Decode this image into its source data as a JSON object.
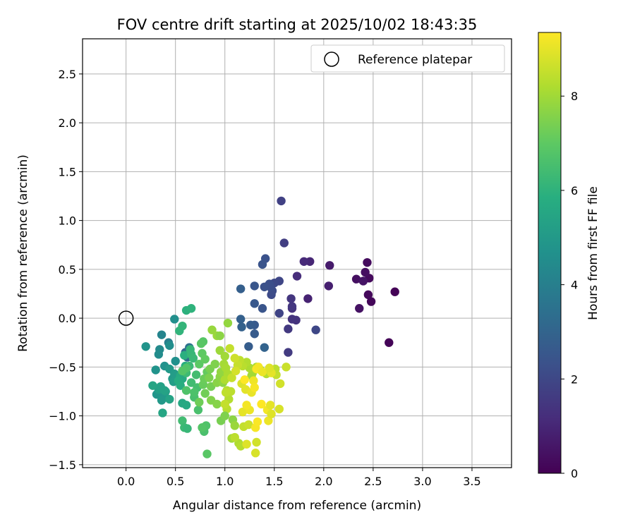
{
  "chart_data": {
    "type": "scatter",
    "title": "FOV centre drift starting at 2025/10/02 18:43:35",
    "xlabel": "Angular distance from reference (arcmin)",
    "ylabel": "Rotation from reference (arcmin)",
    "xlim": [
      -0.44,
      3.9
    ],
    "ylim": [
      -1.53,
      2.86
    ],
    "x_ticks": [
      0.0,
      0.5,
      1.0,
      1.5,
      2.0,
      2.5,
      3.0,
      3.5
    ],
    "x_tick_labels": [
      "0.0",
      "0.5",
      "1.0",
      "1.5",
      "2.0",
      "2.5",
      "3.0",
      "3.5"
    ],
    "y_ticks": [
      -1.5,
      -1.0,
      -0.5,
      0.0,
      0.5,
      1.0,
      1.5,
      2.0,
      2.5
    ],
    "y_tick_labels": [
      "−1.5",
      "−1.0",
      "−0.5",
      "0.0",
      "0.5",
      "1.0",
      "1.5",
      "2.0",
      "2.5"
    ],
    "grid": true,
    "legend": {
      "placement": "top-right",
      "entries": [
        "Reference platepar"
      ]
    },
    "reference_point": {
      "label": "Reference platepar",
      "x": 0.0,
      "y": 0.0
    },
    "colorbar": {
      "label": "Hours from first FF file",
      "colormap": "viridis",
      "range": [
        0,
        9.35
      ],
      "ticks": [
        0,
        2,
        4,
        6,
        8
      ],
      "tick_labels": [
        "0",
        "2",
        "4",
        "6",
        "8"
      ]
    },
    "points": [
      [
        2.72,
        0.27,
        0.05
      ],
      [
        2.66,
        -0.25,
        0.1
      ],
      [
        2.48,
        0.17,
        0.15
      ],
      [
        2.45,
        0.24,
        0.2
      ],
      [
        2.46,
        0.41,
        0.25
      ],
      [
        2.44,
        0.57,
        0.3
      ],
      [
        2.42,
        0.47,
        0.35
      ],
      [
        2.33,
        0.4,
        0.4
      ],
      [
        2.36,
        0.1,
        0.45
      ],
      [
        2.4,
        0.38,
        0.5
      ],
      [
        2.06,
        0.54,
        0.7
      ],
      [
        2.05,
        0.33,
        0.8
      ],
      [
        1.84,
        0.2,
        0.9
      ],
      [
        1.86,
        0.58,
        1.0
      ],
      [
        1.8,
        0.58,
        1.1
      ],
      [
        1.73,
        0.43,
        1.2
      ],
      [
        1.68,
        0.1,
        1.3
      ],
      [
        1.72,
        -0.02,
        1.35
      ],
      [
        1.68,
        -0.01,
        1.4
      ],
      [
        1.67,
        0.2,
        1.45
      ],
      [
        1.68,
        0.12,
        1.5
      ],
      [
        1.64,
        -0.11,
        1.55
      ],
      [
        1.64,
        -0.35,
        1.6
      ],
      [
        1.6,
        0.77,
        1.7
      ],
      [
        1.57,
        1.2,
        1.8
      ],
      [
        1.55,
        0.05,
        1.9
      ],
      [
        1.55,
        0.38,
        1.95
      ],
      [
        1.92,
        -0.12,
        2.0
      ],
      [
        1.5,
        0.36,
        2.05
      ],
      [
        1.47,
        0.24,
        2.1
      ],
      [
        1.48,
        0.28,
        2.15
      ],
      [
        1.46,
        0.32,
        2.2
      ],
      [
        1.45,
        0.35,
        2.25
      ],
      [
        1.4,
        0.32,
        2.3
      ],
      [
        1.41,
        0.61,
        2.35
      ],
      [
        1.38,
        0.55,
        2.4
      ],
      [
        1.38,
        0.1,
        2.45
      ],
      [
        1.3,
        0.33,
        2.5
      ],
      [
        1.3,
        0.15,
        2.55
      ],
      [
        1.3,
        -0.07,
        2.6
      ],
      [
        1.3,
        -0.16,
        2.65
      ],
      [
        1.26,
        -0.07,
        2.7
      ],
      [
        1.24,
        -0.29,
        2.75
      ],
      [
        1.16,
        0.3,
        2.8
      ],
      [
        1.16,
        -0.01,
        2.85
      ],
      [
        1.17,
        -0.09,
        2.9
      ],
      [
        1.4,
        -0.3,
        2.95
      ],
      [
        0.6,
        -0.35,
        3.1
      ],
      [
        0.62,
        -0.4,
        3.3
      ],
      [
        0.64,
        -0.3,
        3.5
      ],
      [
        0.43,
        -0.25,
        4.0
      ],
      [
        0.36,
        -0.17,
        4.2
      ],
      [
        0.34,
        -0.32,
        4.4
      ],
      [
        0.33,
        -0.37,
        4.5
      ],
      [
        0.44,
        -0.28,
        4.55
      ],
      [
        0.49,
        -0.01,
        4.6
      ],
      [
        0.5,
        -0.44,
        4.65
      ],
      [
        0.39,
        -0.49,
        4.7
      ],
      [
        0.3,
        -0.53,
        4.75
      ],
      [
        0.2,
        -0.29,
        4.8
      ],
      [
        0.31,
        -0.78,
        4.85
      ],
      [
        0.39,
        -0.79,
        4.9
      ],
      [
        0.36,
        -0.84,
        4.95
      ],
      [
        0.44,
        -0.52,
        5.0
      ],
      [
        0.47,
        -0.62,
        5.05
      ],
      [
        0.49,
        -0.57,
        5.1
      ],
      [
        0.48,
        -0.65,
        5.15
      ],
      [
        0.4,
        -0.75,
        5.2
      ],
      [
        0.33,
        -0.73,
        5.25
      ],
      [
        0.35,
        -0.7,
        5.3
      ],
      [
        0.39,
        -0.74,
        5.35
      ],
      [
        0.44,
        -0.83,
        5.4
      ],
      [
        0.27,
        -0.69,
        5.45
      ],
      [
        0.37,
        -0.97,
        5.5
      ],
      [
        0.57,
        -0.87,
        5.55
      ],
      [
        0.61,
        -0.89,
        5.6
      ],
      [
        0.57,
        -0.62,
        5.65
      ],
      [
        0.55,
        -0.59,
        5.7
      ],
      [
        0.53,
        -0.64,
        5.75
      ],
      [
        0.55,
        -0.69,
        5.8
      ],
      [
        0.6,
        -0.49,
        5.85
      ],
      [
        0.59,
        -0.38,
        5.9
      ],
      [
        0.61,
        0.08,
        5.95
      ],
      [
        0.66,
        0.1,
        6.0
      ],
      [
        0.54,
        -0.13,
        6.05
      ],
      [
        0.57,
        -0.08,
        6.1
      ],
      [
        0.65,
        -0.32,
        6.15
      ],
      [
        0.66,
        -0.37,
        6.2
      ],
      [
        0.68,
        -0.41,
        6.25
      ],
      [
        0.64,
        -0.49,
        6.3
      ],
      [
        0.61,
        -0.56,
        6.35
      ],
      [
        0.66,
        -0.66,
        6.4
      ],
      [
        0.71,
        -0.58,
        6.45
      ],
      [
        0.72,
        -0.71,
        6.5
      ],
      [
        0.69,
        -0.81,
        6.55
      ],
      [
        0.73,
        -0.94,
        6.6
      ],
      [
        0.69,
        -0.76,
        6.65
      ],
      [
        0.61,
        -0.74,
        6.7
      ],
      [
        0.61,
        -0.51,
        6.75
      ],
      [
        0.57,
        -0.54,
        6.8
      ],
      [
        0.78,
        -0.24,
        6.85
      ],
      [
        0.76,
        -0.26,
        6.9
      ],
      [
        0.74,
        -0.47,
        6.95
      ],
      [
        0.77,
        -0.36,
        7.0
      ],
      [
        0.8,
        -0.42,
        7.05
      ],
      [
        0.82,
        -0.55,
        7.1
      ],
      [
        0.78,
        -0.68,
        7.15
      ],
      [
        0.79,
        -0.62,
        7.2
      ],
      [
        0.74,
        -0.86,
        7.25
      ],
      [
        0.8,
        -0.77,
        7.3
      ],
      [
        0.86,
        -0.7,
        7.35
      ],
      [
        0.85,
        -0.52,
        7.4
      ],
      [
        0.84,
        -0.61,
        7.45
      ],
      [
        0.9,
        -0.47,
        7.5
      ],
      [
        0.86,
        -0.84,
        7.55
      ],
      [
        0.92,
        -0.88,
        7.6
      ],
      [
        0.92,
        -0.66,
        7.65
      ],
      [
        0.95,
        -0.6,
        7.7
      ],
      [
        0.98,
        -0.66,
        7.75
      ],
      [
        0.96,
        -0.55,
        7.8
      ],
      [
        0.87,
        -0.12,
        7.85
      ],
      [
        0.92,
        -0.18,
        7.9
      ],
      [
        0.95,
        -0.33,
        7.95
      ],
      [
        1.0,
        -0.39,
        8.0
      ],
      [
        0.99,
        -0.47,
        8.05
      ],
      [
        1.01,
        -0.51,
        8.1
      ],
      [
        1.03,
        -0.57,
        8.15
      ],
      [
        1.0,
        -0.63,
        8.2
      ],
      [
        1.02,
        -0.74,
        8.25
      ],
      [
        1.04,
        -0.83,
        8.3
      ],
      [
        1.02,
        -0.93,
        8.35
      ],
      [
        1.06,
        -0.75,
        8.4
      ],
      [
        1.01,
        -0.76,
        8.45
      ],
      [
        1.0,
        -0.88,
        8.5
      ],
      [
        1.07,
        -0.61,
        8.55
      ],
      [
        0.79,
        -1.16,
        6.6
      ],
      [
        0.81,
        -1.1,
        6.7
      ],
      [
        0.77,
        -1.12,
        6.8
      ],
      [
        0.82,
        -1.39,
        6.9
      ],
      [
        0.57,
        -1.05,
        6.4
      ],
      [
        0.59,
        -1.12,
        6.3
      ],
      [
        0.62,
        -1.13,
        6.2
      ],
      [
        0.96,
        -1.05,
        7.4
      ],
      [
        1.0,
        -1.0,
        7.5
      ],
      [
        1.08,
        -1.04,
        7.7
      ],
      [
        1.1,
        -1.1,
        7.9
      ],
      [
        1.07,
        -1.23,
        8.0
      ],
      [
        1.14,
        -1.28,
        8.2
      ],
      [
        1.16,
        -1.31,
        8.3
      ],
      [
        1.1,
        -1.22,
        8.4
      ],
      [
        1.19,
        -1.11,
        8.5
      ],
      [
        1.24,
        -1.09,
        8.6
      ],
      [
        1.32,
        -1.27,
        8.7
      ],
      [
        1.31,
        -1.38,
        8.8
      ],
      [
        1.22,
        -1.29,
        8.9
      ],
      [
        1.18,
        -0.96,
        9.0
      ],
      [
        1.25,
        -0.94,
        9.1
      ],
      [
        1.22,
        -0.89,
        9.2
      ],
      [
        1.31,
        -1.12,
        9.25
      ],
      [
        1.33,
        -1.06,
        9.3
      ],
      [
        1.37,
        -0.88,
        9.35
      ],
      [
        1.43,
        -0.94,
        9.2
      ],
      [
        1.44,
        -1.05,
        9.1
      ],
      [
        1.46,
        -0.89,
        9.0
      ],
      [
        1.47,
        -0.98,
        8.9
      ],
      [
        1.55,
        -0.93,
        8.8
      ],
      [
        1.56,
        -0.67,
        8.7
      ],
      [
        1.62,
        -0.5,
        8.6
      ],
      [
        1.52,
        -0.58,
        8.5
      ],
      [
        1.51,
        -0.52,
        8.4
      ],
      [
        1.42,
        -0.57,
        8.3
      ],
      [
        1.36,
        -0.53,
        8.2
      ],
      [
        1.32,
        -0.5,
        8.1
      ],
      [
        1.28,
        -0.56,
        8.0
      ],
      [
        1.27,
        -0.59,
        8.05
      ],
      [
        1.25,
        -0.51,
        8.15
      ],
      [
        1.22,
        -0.45,
        8.25
      ],
      [
        1.18,
        -0.49,
        8.35
      ],
      [
        1.15,
        -0.43,
        8.45
      ],
      [
        1.13,
        -0.48,
        8.55
      ],
      [
        1.1,
        -0.41,
        8.65
      ],
      [
        1.11,
        -0.54,
        8.75
      ],
      [
        1.17,
        -0.67,
        8.85
      ],
      [
        1.21,
        -0.73,
        8.95
      ],
      [
        1.27,
        -0.76,
        9.05
      ],
      [
        1.29,
        -0.64,
        9.15
      ],
      [
        1.3,
        -0.71,
        9.25
      ],
      [
        1.2,
        -0.63,
        9.35
      ],
      [
        1.32,
        -0.52,
        9.3
      ],
      [
        1.34,
        -0.5,
        9.2
      ],
      [
        1.38,
        -0.55,
        9.1
      ],
      [
        1.47,
        -0.56,
        9.0
      ],
      [
        1.45,
        -0.51,
        8.9
      ],
      [
        1.05,
        -0.31,
        8.5
      ],
      [
        1.03,
        -0.05,
        7.8
      ],
      [
        0.95,
        -0.18,
        7.7
      ]
    ]
  }
}
